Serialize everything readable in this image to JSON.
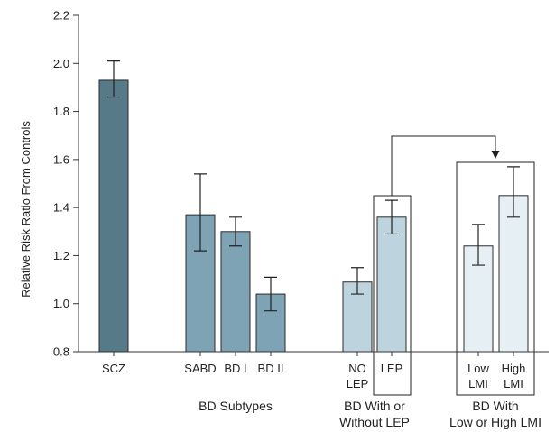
{
  "chart_data": {
    "type": "bar",
    "ylabel": "Relative Risk Ratio From Controls",
    "ylim": [
      0.8,
      2.2
    ],
    "yticks": [
      "0.8",
      "1.0",
      "1.2",
      "1.4",
      "1.6",
      "1.8",
      "2.0",
      "2.2"
    ],
    "ytick_values": [
      0.8,
      1.0,
      1.2,
      1.4,
      1.6,
      1.8,
      2.0,
      2.2
    ],
    "bars": [
      {
        "label": [
          "SCZ"
        ],
        "value": 1.93,
        "lower": 1.86,
        "upper": 2.01,
        "color": "#567a88",
        "group": 0
      },
      {
        "label": [
          "SABD"
        ],
        "value": 1.37,
        "lower": 1.22,
        "upper": 1.54,
        "color": "#7ea3b4",
        "group": 1
      },
      {
        "label": [
          "BD I"
        ],
        "value": 1.3,
        "lower": 1.24,
        "upper": 1.36,
        "color": "#7ea3b4",
        "group": 1
      },
      {
        "label": [
          "BD II"
        ],
        "value": 1.04,
        "lower": 0.97,
        "upper": 1.11,
        "color": "#7ea3b4",
        "group": 1
      },
      {
        "label": [
          "NO",
          "LEP"
        ],
        "value": 1.09,
        "lower": 1.04,
        "upper": 1.15,
        "color": "#bdd3dd",
        "group": 2
      },
      {
        "label": [
          "LEP"
        ],
        "value": 1.36,
        "lower": 1.29,
        "upper": 1.43,
        "color": "#bdd3dd",
        "group": 2
      },
      {
        "label": [
          "Low",
          "LMI"
        ],
        "value": 1.24,
        "lower": 1.16,
        "upper": 1.33,
        "color": "#e6eff3",
        "group": 3
      },
      {
        "label": [
          "High",
          "LMI"
        ],
        "value": 1.45,
        "lower": 1.36,
        "upper": 1.57,
        "color": "#e6eff3",
        "group": 3
      }
    ],
    "groups": [
      {
        "label": [
          ""
        ]
      },
      {
        "label": [
          "BD Subtypes"
        ]
      },
      {
        "label": [
          "BD With or",
          "Without LEP"
        ]
      },
      {
        "label": [
          "BD With",
          "Low or High LMI"
        ]
      }
    ]
  }
}
